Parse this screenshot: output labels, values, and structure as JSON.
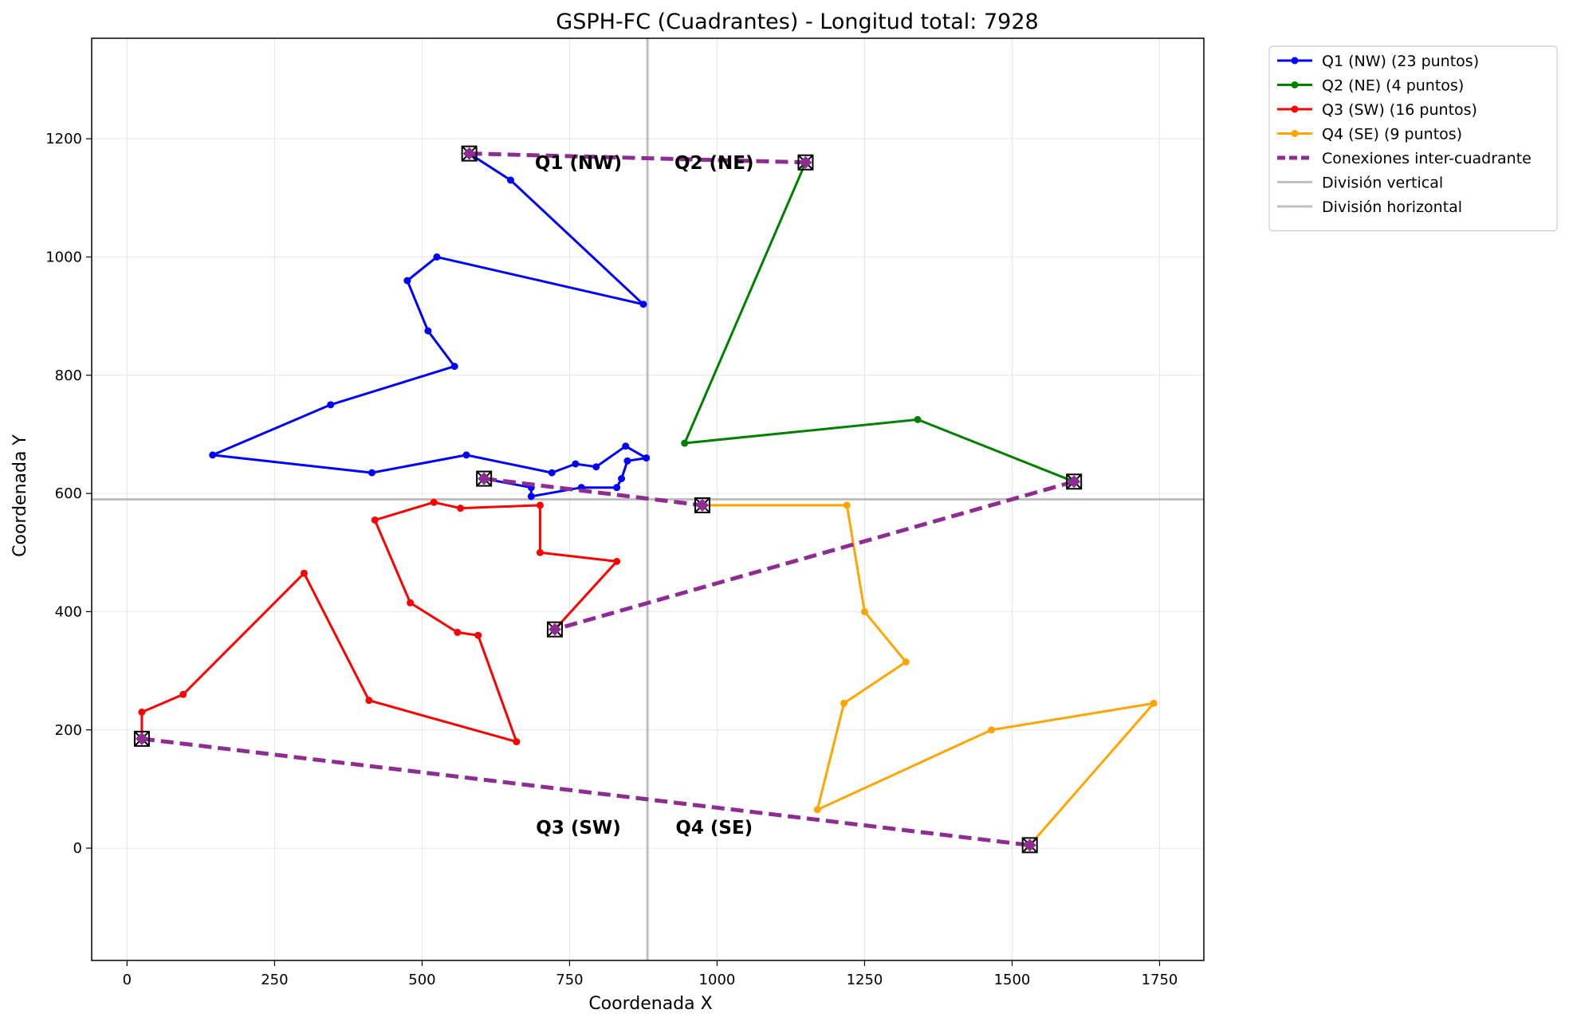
{
  "chart_data": {
    "type": "line",
    "title": "GSPH-FC (Cuadrantes) - Longitud total: 7928",
    "xlabel": "Coordenada X",
    "ylabel": "Coordenada Y",
    "xlim": [
      -60,
      1825
    ],
    "ylim": [
      -190,
      1370
    ],
    "xticks": [
      0,
      250,
      500,
      750,
      1000,
      1250,
      1500,
      1750
    ],
    "yticks": [
      0,
      200,
      400,
      600,
      800,
      1000,
      1200
    ],
    "grid": true,
    "legend_position": "outside-top-right",
    "divisions": {
      "vertical_x": 882,
      "horizontal_y": 590,
      "color": "#bfbfbf"
    },
    "quadrant_labels": [
      {
        "text": "Q1 (NW)",
        "x": 765,
        "y": 1160
      },
      {
        "text": "Q2 (NE)",
        "x": 995,
        "y": 1160
      },
      {
        "text": "Q3 (SW)",
        "x": 765,
        "y": 35
      },
      {
        "text": "Q4 (SE)",
        "x": 995,
        "y": 35
      }
    ],
    "series": [
      {
        "name": "Q1 (NW) (23 puntos)",
        "color": "#0000ff",
        "points": [
          [
            580,
            1175
          ],
          [
            650,
            1130
          ],
          [
            875,
            920
          ],
          [
            525,
            1000
          ],
          [
            475,
            960
          ],
          [
            510,
            875
          ],
          [
            555,
            815
          ],
          [
            345,
            750
          ],
          [
            145,
            665
          ],
          [
            415,
            635
          ],
          [
            575,
            665
          ],
          [
            720,
            635
          ],
          [
            760,
            650
          ],
          [
            795,
            645
          ],
          [
            845,
            680
          ],
          [
            880,
            660
          ],
          [
            848,
            655
          ],
          [
            838,
            625
          ],
          [
            830,
            610
          ],
          [
            770,
            610
          ],
          [
            685,
            595
          ],
          [
            685,
            610
          ],
          [
            605,
            625
          ]
        ]
      },
      {
        "name": "Q2 (NE) (4 puntos)",
        "color": "#008000",
        "points": [
          [
            1150,
            1160
          ],
          [
            945,
            685
          ],
          [
            1340,
            725
          ],
          [
            1605,
            620
          ]
        ]
      },
      {
        "name": "Q3 (SW) (16 puntos)",
        "color": "#ff0000",
        "points": [
          [
            725,
            370
          ],
          [
            830,
            485
          ],
          [
            700,
            500
          ],
          [
            700,
            580
          ],
          [
            565,
            575
          ],
          [
            520,
            585
          ],
          [
            420,
            555
          ],
          [
            480,
            415
          ],
          [
            560,
            365
          ],
          [
            595,
            360
          ],
          [
            660,
            180
          ],
          [
            410,
            250
          ],
          [
            300,
            465
          ],
          [
            95,
            260
          ],
          [
            25,
            230
          ],
          [
            25,
            185
          ]
        ]
      },
      {
        "name": "Q4 (SE) (9 puntos)",
        "color": "#ffa500",
        "points": [
          [
            975,
            580
          ],
          [
            1220,
            580
          ],
          [
            1250,
            400
          ],
          [
            1320,
            315
          ],
          [
            1215,
            245
          ],
          [
            1170,
            65
          ],
          [
            1465,
            200
          ],
          [
            1740,
            245
          ],
          [
            1530,
            5
          ]
        ]
      },
      {
        "name": "Conexiones inter-cuadrante",
        "color": "#8e2c93",
        "dashed": true,
        "segments": [
          [
            [
              580,
              1175
            ],
            [
              1150,
              1160
            ]
          ],
          [
            [
              605,
              625
            ],
            [
              975,
              580
            ]
          ],
          [
            [
              1605,
              620
            ],
            [
              725,
              370
            ]
          ],
          [
            [
              25,
              185
            ],
            [
              1530,
              5
            ]
          ]
        ]
      }
    ],
    "reference_lines": [
      {
        "name": "División vertical",
        "color": "#bfbfbf"
      },
      {
        "name": "División horizontal",
        "color": "#bfbfbf"
      }
    ],
    "endpoint_markers": [
      [
        580,
        1175
      ],
      [
        1150,
        1160
      ],
      [
        605,
        625
      ],
      [
        975,
        580
      ],
      [
        1605,
        620
      ],
      [
        725,
        370
      ],
      [
        25,
        185
      ],
      [
        1530,
        5
      ]
    ]
  }
}
